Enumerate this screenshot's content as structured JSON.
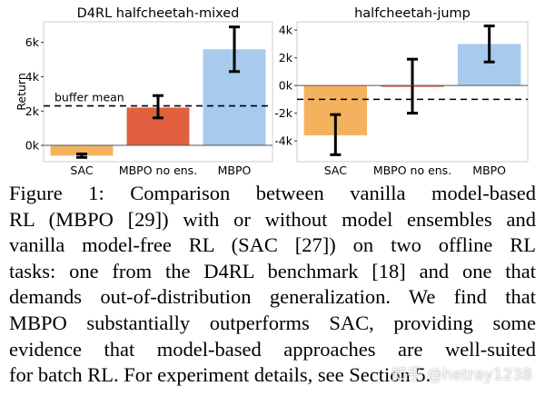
{
  "chart_data": [
    {
      "type": "bar",
      "title": "D4RL halfcheetah-mixed",
      "ylabel": "Return",
      "categories": [
        "SAC",
        "MBPO no ens.",
        "MBPO"
      ],
      "values": [
        -0.6,
        2.2,
        5.6
      ],
      "error_low": [
        -0.7,
        1.6,
        4.3
      ],
      "error_high": [
        -0.5,
        2.9,
        6.9
      ],
      "yticks": [
        0,
        2,
        4,
        6
      ],
      "ytick_labels": [
        "0k",
        "2k",
        "4k",
        "6k"
      ],
      "ylim": [
        -0.95,
        7.2
      ],
      "reference_line": {
        "label": "buffer mean",
        "value": 2.3
      },
      "colors": [
        "#f4b25e",
        "#e0603f",
        "#a8caec"
      ],
      "grid": false
    },
    {
      "type": "bar",
      "title": "halfcheetah-jump",
      "categories": [
        "SAC",
        "MBPO no ens.",
        "MBPO"
      ],
      "values": [
        -3.6,
        -0.05,
        3.0
      ],
      "error_low": [
        -5.0,
        -2.0,
        1.7
      ],
      "error_high": [
        -2.1,
        1.9,
        4.3
      ],
      "yticks": [
        -4,
        -2,
        0,
        2,
        4
      ],
      "ytick_labels": [
        "-4k",
        "-2k",
        "0k",
        "2k",
        "4k"
      ],
      "ylim": [
        -5.5,
        4.6
      ],
      "reference_line": {
        "value": -1.0
      },
      "colors": [
        "#f4b25e",
        "#e0603f",
        "#a8caec"
      ],
      "grid": false
    }
  ],
  "caption": {
    "lines": [
      "Figure 1: Comparison between vanilla model-based",
      "RL (MBPO [29]) with or without model ensembles and",
      "vanilla model-free RL (SAC [27]) on two offline RL",
      "tasks: one from the D4RL benchmark [18] and one that",
      "demands out-of-distribution generalization. We find that",
      "MBPO substantially outperforms SAC, providing some",
      "evidence that model-based approaches are well-suited",
      "for batch RL. For experiment details, see Section 5."
    ]
  },
  "watermark": "知乎 @hetray1238"
}
